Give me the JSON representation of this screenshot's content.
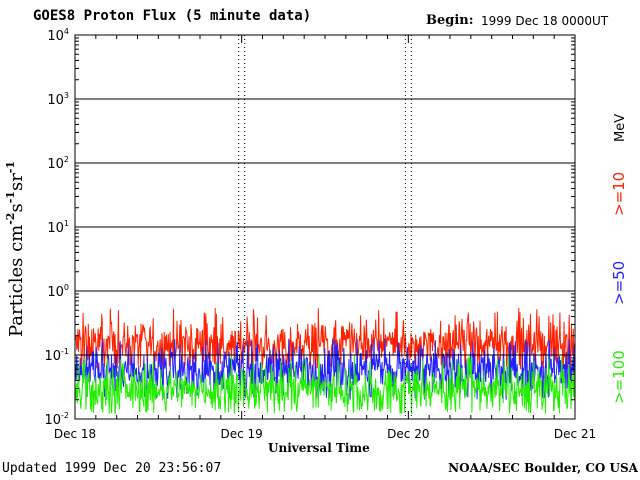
{
  "header": {
    "title": "GOES8 Proton Flux (5 minute data)",
    "begin_label": "Begin:",
    "begin_value": "1999 Dec 18 0000UT"
  },
  "footer": {
    "updated": "Updated 1999 Dec 20 23:56:07",
    "source": "NOAA/SEC Boulder, CO USA"
  },
  "chart_data": {
    "type": "line",
    "xlabel": "Universal Time",
    "ylabel_base": "Particles cm",
    "ylabel_parts": [
      {
        "text": "Particles cm",
        "sup": false
      },
      {
        "text": "-2",
        "sup": true
      },
      {
        "text": "s",
        "sup": false
      },
      {
        "text": "-1",
        "sup": true
      },
      {
        "text": "sr",
        "sup": false
      },
      {
        "text": "-1",
        "sup": true
      }
    ],
    "x_ticks": [
      "Dec 18",
      "Dec 19",
      "Dec 20",
      "Dec 21"
    ],
    "xlim_days": [
      0,
      3
    ],
    "y_scale": "log",
    "ylim": [
      0.01,
      10000
    ],
    "y_ticks": [
      {
        "base": "10",
        "exp": "-2"
      },
      {
        "base": "10",
        "exp": "-1"
      },
      {
        "base": "10",
        "exp": "0"
      },
      {
        "base": "10",
        "exp": "1"
      },
      {
        "base": "10",
        "exp": "2"
      },
      {
        "base": "10",
        "exp": "3"
      },
      {
        "base": "10",
        "exp": "4"
      }
    ],
    "grid": true,
    "legend_unit": "MeV",
    "series": [
      {
        "name": ">=10",
        "color": "#ff2200",
        "typical": 0.15,
        "min": 0.06,
        "max": 0.55
      },
      {
        "name": ">=50",
        "color": "#2222ff",
        "typical": 0.06,
        "min": 0.02,
        "max": 0.18
      },
      {
        "name": ">=100",
        "color": "#22ee00",
        "typical": 0.03,
        "min": 0.012,
        "max": 0.1
      }
    ]
  }
}
